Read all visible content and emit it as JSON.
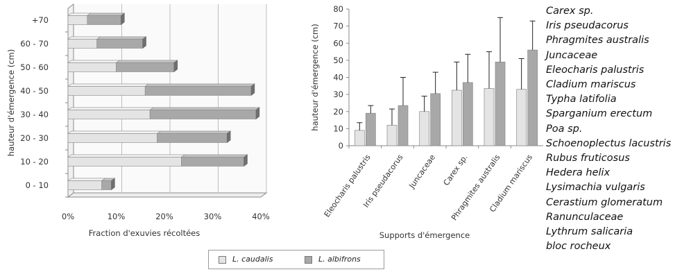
{
  "colors": {
    "caudalis": "#e4e4e4",
    "albifrons": "#a8a8a8",
    "grid": "#bdbdbd",
    "axis": "#8a8a8a"
  },
  "chart_data": [
    {
      "type": "bar",
      "orientation": "horizontal",
      "stacked": true,
      "xlabel": "Fraction d'exuvies récoltées",
      "ylabel": "hauteur d'émergence  (cm)",
      "xlim": [
        0,
        40
      ],
      "xticks": [
        "0%",
        "10%",
        "20%",
        "30%",
        "40%"
      ],
      "categories": [
        "0 - 10",
        "10 - 20",
        "20 - 30",
        "30 - 40",
        "40 - 50",
        "50 - 60",
        "60 - 70",
        "+70"
      ],
      "series": [
        {
          "name": "L. caudalis",
          "values": [
            7,
            23.5,
            18.5,
            17,
            16,
            10,
            6,
            4
          ]
        },
        {
          "name": "L. albifrons",
          "values": [
            2,
            13,
            14.5,
            22,
            22,
            12,
            9.5,
            7
          ]
        }
      ],
      "grid": true
    },
    {
      "type": "bar",
      "orientation": "vertical",
      "error_bars": true,
      "xlabel": "Supports d'émergence",
      "ylabel": "hauteur d'émergence (cm)",
      "ylim": [
        0,
        80
      ],
      "yticks": [
        "0",
        "10",
        "20",
        "30",
        "40",
        "50",
        "60",
        "70",
        "80"
      ],
      "categories": [
        "Eleocharis palustris",
        "Iris pseudacorus",
        "Juncaceae",
        "Carex sp.",
        "Phragmites australis",
        "Cladium mariscus"
      ],
      "series": [
        {
          "name": "L. caudalis",
          "values": [
            9,
            12,
            20,
            32.5,
            33.5,
            33
          ],
          "errors": [
            4.5,
            9.5,
            9,
            16.5,
            21.5,
            18
          ]
        },
        {
          "name": "L. albifrons",
          "values": [
            19,
            23.5,
            30.5,
            37,
            49,
            56
          ],
          "errors": [
            4.5,
            16.5,
            12.5,
            16.5,
            26,
            17
          ]
        }
      ]
    }
  ],
  "species_list": [
    "Carex sp.",
    "Iris pseudacorus",
    "Phragmites australis",
    "Juncaceae",
    "Eleocharis palustris",
    "Cladium mariscus",
    "Typha latifolia",
    "Sparganium erectum",
    "Poa sp.",
    "Schoenoplectus lacustris",
    "Rubus fruticosus",
    "Hedera helix",
    "Lysimachia vulgaris",
    "Cerastium glomeratum",
    "Ranunculaceae",
    "Lythrum salicaria",
    "bloc rocheux"
  ],
  "legend": {
    "items": [
      "L. caudalis",
      "L. albifrons"
    ]
  }
}
